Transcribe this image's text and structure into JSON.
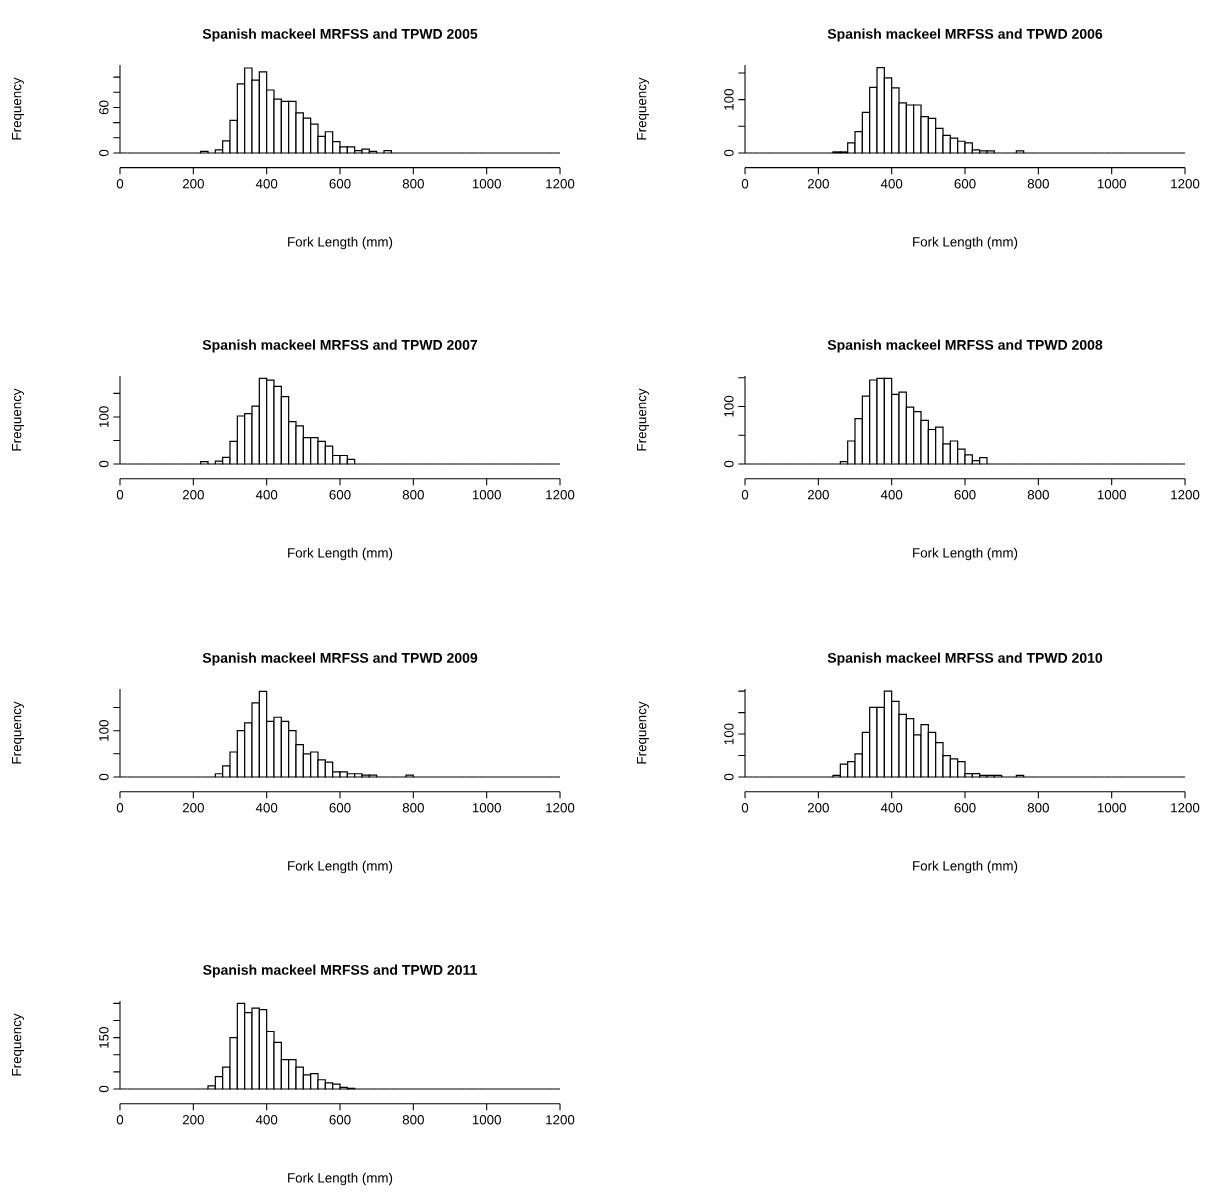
{
  "chart_data": [
    {
      "type": "histogram",
      "title": "Spanish mackeel MRFSS and TPWD 2005",
      "xlabel": "Fork Length (mm)",
      "ylabel": "Frequency",
      "bins": [
        0,
        20,
        40,
        60,
        80,
        100,
        120,
        140,
        160,
        180,
        200,
        220,
        240,
        260,
        280,
        300,
        320,
        340,
        360,
        380,
        400,
        420,
        440,
        460,
        480,
        500,
        520,
        540,
        560,
        580,
        600,
        620,
        640,
        660,
        680,
        700,
        720,
        740,
        760,
        780,
        800,
        820,
        840,
        860,
        880,
        900,
        920,
        940,
        960,
        980,
        1000,
        1020,
        1040,
        1060,
        1080,
        1100,
        1120,
        1140,
        1160,
        1180,
        1200
      ],
      "values": [
        0,
        0,
        0,
        0,
        0,
        0,
        0,
        0,
        0,
        0,
        0,
        2,
        0,
        4,
        16,
        43,
        91,
        112,
        96,
        107,
        83,
        71,
        68,
        68,
        53,
        46,
        38,
        22,
        28,
        15,
        8,
        8,
        3,
        5,
        2,
        0,
        3,
        0,
        0,
        0,
        0,
        0,
        0,
        0,
        0,
        0,
        0,
        0,
        0,
        0,
        0,
        0,
        0,
        0,
        0,
        0,
        0,
        0,
        0,
        0
      ],
      "xlim": [
        0,
        1200
      ],
      "xticks": [
        0,
        200,
        400,
        600,
        800,
        1000,
        1200
      ],
      "ylim": [
        0,
        116
      ],
      "yticks": [
        0,
        {
          "value": 20,
          "label": null
        },
        {
          "value": 40,
          "label": null
        },
        60,
        {
          "value": 80,
          "label": null
        },
        {
          "value": 100,
          "label": null
        }
      ]
    },
    {
      "type": "histogram",
      "title": "Spanish mackeel MRFSS and TPWD 2006",
      "xlabel": "Fork Length (mm)",
      "ylabel": "Frequency",
      "bins": [
        0,
        20,
        40,
        60,
        80,
        100,
        120,
        140,
        160,
        180,
        200,
        220,
        240,
        260,
        280,
        300,
        320,
        340,
        360,
        380,
        400,
        420,
        440,
        460,
        480,
        500,
        520,
        540,
        560,
        580,
        600,
        620,
        640,
        660,
        680,
        700,
        720,
        740,
        760,
        780,
        800,
        820,
        840,
        860,
        880,
        900,
        920,
        940,
        960,
        980,
        1000,
        1020,
        1040,
        1060,
        1080,
        1100,
        1120,
        1140,
        1160,
        1180,
        1200
      ],
      "values": [
        0,
        0,
        0,
        0,
        0,
        0,
        0,
        0,
        0,
        0,
        0,
        0,
        2,
        2,
        19,
        40,
        76,
        123,
        160,
        141,
        122,
        94,
        90,
        90,
        68,
        65,
        46,
        33,
        28,
        22,
        19,
        6,
        4,
        4,
        0,
        0,
        0,
        4,
        0,
        0,
        0,
        0,
        0,
        0,
        0,
        0,
        0,
        0,
        0,
        0,
        0,
        0,
        0,
        0,
        0,
        0,
        0,
        0,
        0,
        0
      ],
      "xlim": [
        0,
        1200
      ],
      "xticks": [
        0,
        200,
        400,
        600,
        800,
        1000,
        1200
      ],
      "ylim": [
        0,
        165
      ],
      "yticks": [
        0,
        {
          "value": 50,
          "label": null
        },
        100,
        {
          "value": 150,
          "label": null
        }
      ]
    },
    {
      "type": "histogram",
      "title": "Spanish mackeel MRFSS and TPWD 2007",
      "xlabel": "Fork Length (mm)",
      "ylabel": "Frequency",
      "bins": [
        0,
        20,
        40,
        60,
        80,
        100,
        120,
        140,
        160,
        180,
        200,
        220,
        240,
        260,
        280,
        300,
        320,
        340,
        360,
        380,
        400,
        420,
        440,
        460,
        480,
        500,
        520,
        540,
        560,
        580,
        600,
        620,
        640,
        660,
        680,
        700,
        720,
        740,
        760,
        780,
        800,
        820,
        840,
        860,
        880,
        900,
        920,
        940,
        960,
        980,
        1000,
        1020,
        1040,
        1060,
        1080,
        1100,
        1120,
        1140,
        1160,
        1180,
        1200
      ],
      "values": [
        0,
        0,
        0,
        0,
        0,
        0,
        0,
        0,
        0,
        0,
        0,
        5,
        0,
        6,
        14,
        48,
        102,
        107,
        123,
        182,
        178,
        165,
        143,
        90,
        81,
        56,
        56,
        48,
        38,
        18,
        18,
        10,
        0,
        0,
        0,
        0,
        0,
        0,
        0,
        0,
        0,
        0,
        0,
        0,
        0,
        0,
        0,
        0,
        0,
        0,
        0,
        0,
        0,
        0,
        0,
        0,
        0,
        0,
        0,
        0
      ],
      "xlim": [
        0,
        1200
      ],
      "xticks": [
        0,
        200,
        400,
        600,
        800,
        1000,
        1200
      ],
      "ylim": [
        0,
        187
      ],
      "yticks": [
        0,
        {
          "value": 50,
          "label": null
        },
        100,
        {
          "value": 150,
          "label": null
        }
      ]
    },
    {
      "type": "histogram",
      "title": "Spanish mackeel MRFSS and TPWD 2008",
      "xlabel": "Fork Length (mm)",
      "ylabel": "Frequency",
      "bins": [
        0,
        20,
        40,
        60,
        80,
        100,
        120,
        140,
        160,
        180,
        200,
        220,
        240,
        260,
        280,
        300,
        320,
        340,
        360,
        380,
        400,
        420,
        440,
        460,
        480,
        500,
        520,
        540,
        560,
        580,
        600,
        620,
        640,
        660,
        680,
        700,
        720,
        740,
        760,
        780,
        800,
        820,
        840,
        860,
        880,
        900,
        920,
        940,
        960,
        980,
        1000,
        1020,
        1040,
        1060,
        1080,
        1100,
        1120,
        1140,
        1160,
        1180,
        1200
      ],
      "values": [
        0,
        0,
        0,
        0,
        0,
        0,
        0,
        0,
        0,
        0,
        0,
        0,
        0,
        4,
        40,
        79,
        118,
        146,
        149,
        149,
        121,
        125,
        99,
        91,
        76,
        60,
        64,
        35,
        40,
        26,
        16,
        6,
        11,
        0,
        0,
        0,
        0,
        0,
        0,
        0,
        0,
        0,
        0,
        0,
        0,
        0,
        0,
        0,
        0,
        0,
        0,
        0,
        0,
        0,
        0,
        0,
        0,
        0,
        0,
        0
      ],
      "xlim": [
        0,
        1200
      ],
      "xticks": [
        0,
        200,
        400,
        600,
        800,
        1000,
        1200
      ],
      "ylim": [
        0,
        153
      ],
      "yticks": [
        0,
        {
          "value": 50,
          "label": null
        },
        100,
        {
          "value": 150,
          "label": null
        }
      ]
    },
    {
      "type": "histogram",
      "title": "Spanish mackeel MRFSS and TPWD 2009",
      "xlabel": "Fork Length (mm)",
      "ylabel": "Frequency",
      "bins": [
        0,
        20,
        40,
        60,
        80,
        100,
        120,
        140,
        160,
        180,
        200,
        220,
        240,
        260,
        280,
        300,
        320,
        340,
        360,
        380,
        400,
        420,
        440,
        460,
        480,
        500,
        520,
        540,
        560,
        580,
        600,
        620,
        640,
        660,
        680,
        700,
        720,
        740,
        760,
        780,
        800,
        820,
        840,
        860,
        880,
        900,
        920,
        940,
        960,
        980,
        1000,
        1020,
        1040,
        1060,
        1080,
        1100,
        1120,
        1140,
        1160,
        1180,
        1200
      ],
      "values": [
        0,
        0,
        0,
        0,
        0,
        0,
        0,
        0,
        0,
        0,
        0,
        0,
        0,
        7,
        24,
        54,
        100,
        117,
        160,
        185,
        120,
        129,
        120,
        100,
        70,
        50,
        54,
        37,
        32,
        11,
        11,
        7,
        7,
        4,
        4,
        0,
        0,
        0,
        0,
        4,
        0,
        0,
        0,
        0,
        0,
        0,
        0,
        0,
        0,
        0,
        0,
        0,
        0,
        0,
        0,
        0,
        0,
        0,
        0,
        0
      ],
      "xlim": [
        0,
        1200
      ],
      "xticks": [
        0,
        200,
        400,
        600,
        800,
        1000,
        1200
      ],
      "ylim": [
        0,
        190
      ],
      "yticks": [
        0,
        {
          "value": 50,
          "label": null
        },
        100,
        {
          "value": 150,
          "label": null
        }
      ]
    },
    {
      "type": "histogram",
      "title": "Spanish mackeel MRFSS and TPWD 2010",
      "xlabel": "Fork Length (mm)",
      "ylabel": "Frequency",
      "bins": [
        0,
        20,
        40,
        60,
        80,
        100,
        120,
        140,
        160,
        180,
        200,
        220,
        240,
        260,
        280,
        300,
        320,
        340,
        360,
        380,
        400,
        420,
        440,
        460,
        480,
        500,
        520,
        540,
        560,
        580,
        600,
        620,
        640,
        660,
        680,
        700,
        720,
        740,
        760,
        780,
        800,
        820,
        840,
        860,
        880,
        900,
        920,
        940,
        960,
        980,
        1000,
        1020,
        1040,
        1060,
        1080,
        1100,
        1120,
        1140,
        1160,
        1180,
        1200
      ],
      "values": [
        0,
        0,
        0,
        0,
        0,
        0,
        0,
        0,
        0,
        0,
        0,
        0,
        4,
        30,
        36,
        54,
        104,
        162,
        162,
        200,
        176,
        146,
        136,
        98,
        122,
        104,
        80,
        50,
        42,
        36,
        8,
        8,
        4,
        4,
        4,
        0,
        0,
        4,
        0,
        0,
        0,
        0,
        0,
        0,
        0,
        0,
        0,
        0,
        0,
        0,
        0,
        0,
        0,
        0,
        0,
        0,
        0,
        0,
        0,
        0
      ],
      "xlim": [
        0,
        1200
      ],
      "xticks": [
        0,
        200,
        400,
        600,
        800,
        1000,
        1200
      ],
      "ylim": [
        0,
        205
      ],
      "yticks": [
        0,
        {
          "value": 50,
          "label": null
        },
        100,
        {
          "value": 150,
          "label": null
        },
        {
          "value": 200,
          "label": null
        }
      ]
    },
    {
      "type": "histogram",
      "title": "Spanish mackeel MRFSS and TPWD 2011",
      "xlabel": "Fork Length (mm)",
      "ylabel": "Frequency",
      "bins": [
        0,
        20,
        40,
        60,
        80,
        100,
        120,
        140,
        160,
        180,
        200,
        220,
        240,
        260,
        280,
        300,
        320,
        340,
        360,
        380,
        400,
        420,
        440,
        460,
        480,
        500,
        520,
        540,
        560,
        580,
        600,
        620,
        640,
        660,
        680,
        700,
        720,
        740,
        760,
        780,
        800,
        820,
        840,
        860,
        880,
        900,
        920,
        940,
        960,
        980,
        1000,
        1020,
        1040,
        1060,
        1080,
        1100,
        1120,
        1140,
        1160,
        1180,
        1200
      ],
      "values": [
        0,
        0,
        0,
        0,
        0,
        0,
        0,
        0,
        0,
        0,
        0,
        0,
        9,
        36,
        64,
        150,
        250,
        223,
        236,
        232,
        168,
        136,
        86,
        86,
        64,
        41,
        45,
        27,
        18,
        14,
        5,
        2,
        0,
        0,
        0,
        0,
        0,
        0,
        0,
        0,
        0,
        0,
        0,
        0,
        0,
        0,
        0,
        0,
        0,
        0,
        0,
        0,
        0,
        0,
        0,
        0,
        0,
        0,
        0,
        0
      ],
      "xlim": [
        0,
        1200
      ],
      "xticks": [
        0,
        200,
        400,
        600,
        800,
        1000,
        1200
      ],
      "ylim": [
        0,
        257
      ],
      "yticks": [
        0,
        {
          "value": 50,
          "label": null
        },
        {
          "value": 100,
          "label": null
        },
        150,
        {
          "value": 200,
          "label": null
        },
        {
          "value": 250,
          "label": null
        }
      ]
    }
  ]
}
